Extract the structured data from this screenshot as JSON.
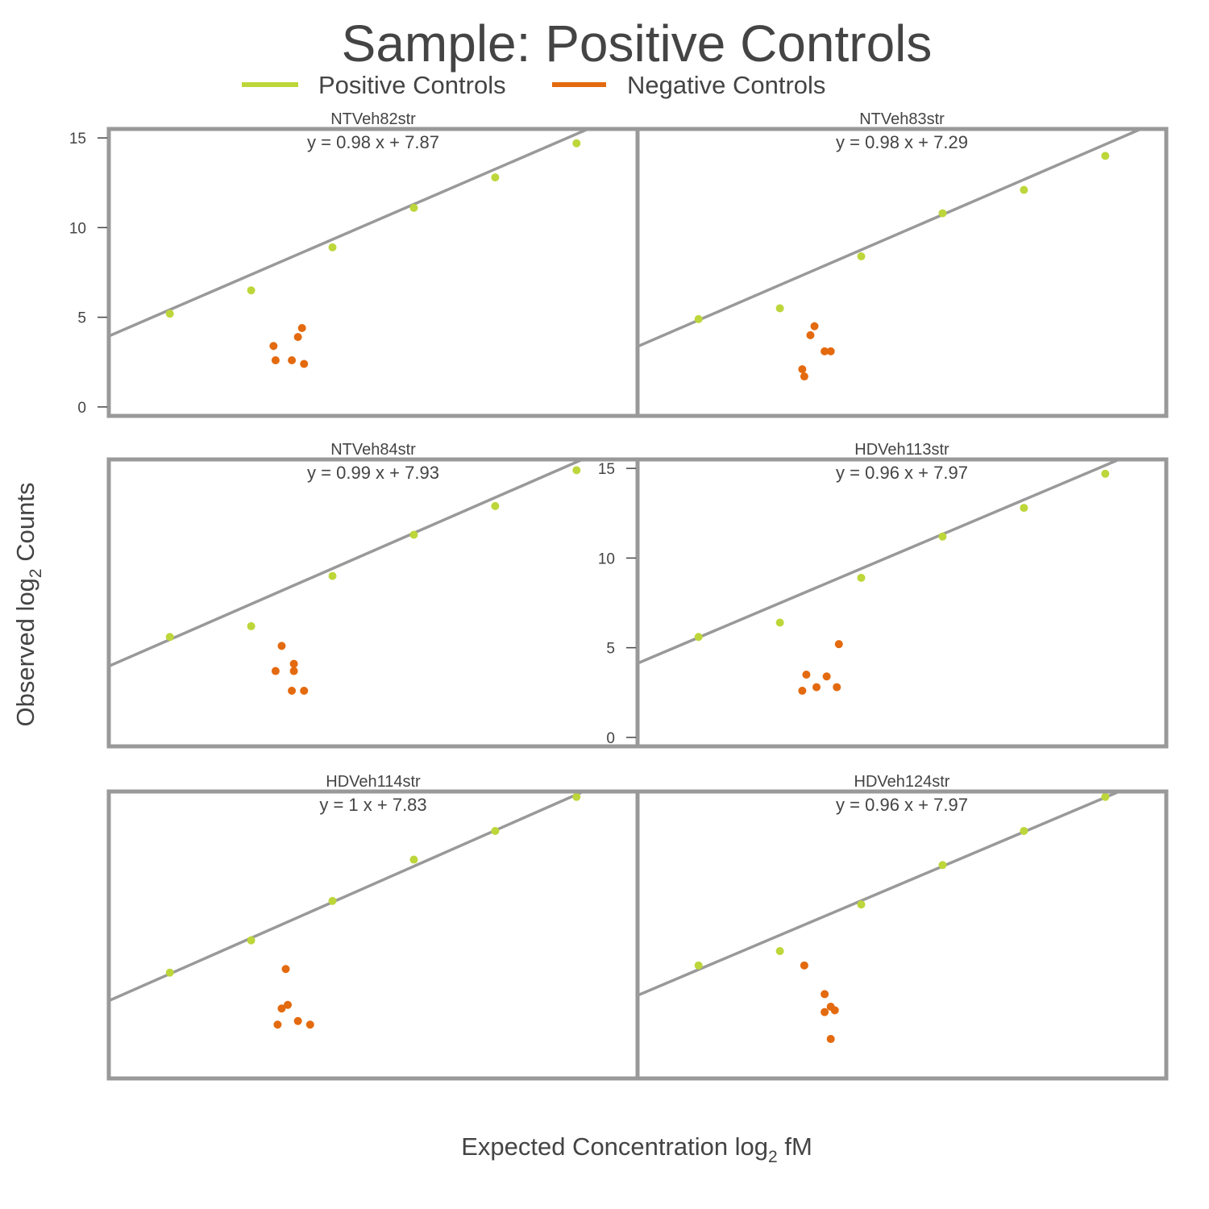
{
  "figure": {
    "title": "Sample: Positive Controls",
    "xlabel": {
      "main": "Expected Concentration log",
      "sub": "2",
      "suffix": " fM"
    },
    "ylabel": {
      "main": "Observed log",
      "sub": "2",
      "suffix": " Counts"
    }
  },
  "legend": [
    {
      "label": "Positive Controls",
      "color": "#BDD63A"
    },
    {
      "label": "Negative Controls",
      "color": "#E36A0E"
    }
  ],
  "colors": {
    "frame": "#999999",
    "fit_line": "#999999",
    "text": "#444444"
  },
  "chart_data": {
    "type": "scatter",
    "layout": "facet grid, 3 rows x 2 columns",
    "x_axis": {
      "ticks_shown": false,
      "xlim": [
        -4,
        9
      ]
    },
    "y_axis": {
      "ylim": [
        -0.5,
        15.5
      ],
      "ticks": [
        0,
        5,
        10,
        15
      ],
      "tick_labels": [
        "0",
        "5",
        "10",
        "15"
      ]
    },
    "grid": false,
    "legend_position": "top",
    "panels": [
      {
        "name": "NTVeh82str",
        "equation": "y = 0.98 x + 7.87",
        "y_ticks_shown": true,
        "fit": {
          "slope": 0.98,
          "intercept": 7.87
        },
        "positive": [
          [
            -2.5,
            5.2
          ],
          [
            -0.5,
            6.5
          ],
          [
            1.5,
            8.9
          ],
          [
            3.5,
            11.1
          ],
          [
            5.5,
            12.8
          ],
          [
            7.5,
            14.7
          ]
        ],
        "negative": [
          [
            0.05,
            3.4
          ],
          [
            0.1,
            2.6
          ],
          [
            0.5,
            2.6
          ],
          [
            0.65,
            3.9
          ],
          [
            0.75,
            4.4
          ],
          [
            0.8,
            2.4
          ]
        ]
      },
      {
        "name": "NTVeh83str",
        "equation": "y = 0.98 x + 7.29",
        "y_ticks_shown": false,
        "fit": {
          "slope": 0.98,
          "intercept": 7.29
        },
        "positive": [
          [
            -2.5,
            4.9
          ],
          [
            -0.5,
            5.5
          ],
          [
            1.5,
            8.4
          ],
          [
            3.5,
            10.8
          ],
          [
            5.5,
            12.1
          ],
          [
            7.5,
            14.0
          ]
        ],
        "negative": [
          [
            0.05,
            2.1
          ],
          [
            0.1,
            1.7
          ],
          [
            0.25,
            4.0
          ],
          [
            0.35,
            4.5
          ],
          [
            0.6,
            3.1
          ],
          [
            0.75,
            3.1
          ]
        ]
      },
      {
        "name": "NTVeh84str",
        "equation": "y = 0.99 x + 7.93",
        "y_ticks_shown": false,
        "fit": {
          "slope": 0.99,
          "intercept": 7.93
        },
        "positive": [
          [
            -2.5,
            5.6
          ],
          [
            -0.5,
            6.2
          ],
          [
            1.5,
            9.0
          ],
          [
            3.5,
            11.3
          ],
          [
            5.5,
            12.9
          ],
          [
            7.5,
            14.9
          ]
        ],
        "negative": [
          [
            0.1,
            3.7
          ],
          [
            0.25,
            5.1
          ],
          [
            0.5,
            2.6
          ],
          [
            0.55,
            3.7
          ],
          [
            0.55,
            4.1
          ],
          [
            0.8,
            2.6
          ]
        ]
      },
      {
        "name": "HDVeh113str",
        "equation": "y = 0.96 x + 7.97",
        "y_ticks_shown": true,
        "fit": {
          "slope": 0.96,
          "intercept": 7.97
        },
        "positive": [
          [
            -2.5,
            5.6
          ],
          [
            -0.5,
            6.4
          ],
          [
            1.5,
            8.9
          ],
          [
            3.5,
            11.2
          ],
          [
            5.5,
            12.8
          ],
          [
            7.5,
            14.7
          ]
        ],
        "negative": [
          [
            0.05,
            2.6
          ],
          [
            0.15,
            3.5
          ],
          [
            0.4,
            2.8
          ],
          [
            0.65,
            3.4
          ],
          [
            0.9,
            2.8
          ],
          [
            0.95,
            5.2
          ]
        ]
      },
      {
        "name": "HDVeh114str",
        "equation": "y = 1 x + 7.83",
        "y_ticks_shown": false,
        "fit": {
          "slope": 1.0,
          "intercept": 7.83
        },
        "positive": [
          [
            -2.5,
            5.4
          ],
          [
            -0.5,
            7.2
          ],
          [
            1.5,
            9.4
          ],
          [
            3.5,
            11.7
          ],
          [
            5.5,
            13.3
          ],
          [
            7.5,
            15.2
          ]
        ],
        "negative": [
          [
            0.15,
            2.5
          ],
          [
            0.25,
            3.4
          ],
          [
            0.35,
            5.6
          ],
          [
            0.4,
            3.6
          ],
          [
            0.65,
            2.7
          ],
          [
            0.95,
            2.5
          ]
        ]
      },
      {
        "name": "HDVeh124str",
        "equation": "y = 0.96 x + 7.97",
        "y_ticks_shown": false,
        "fit": {
          "slope": 0.96,
          "intercept": 7.97
        },
        "positive": [
          [
            -2.5,
            5.8
          ],
          [
            -0.5,
            6.6
          ],
          [
            1.5,
            9.2
          ],
          [
            3.5,
            11.4
          ],
          [
            5.5,
            13.3
          ],
          [
            7.5,
            15.2
          ]
        ],
        "negative": [
          [
            0.1,
            5.8
          ],
          [
            0.6,
            4.2
          ],
          [
            0.6,
            3.2
          ],
          [
            0.75,
            3.5
          ],
          [
            0.75,
            1.7
          ],
          [
            0.85,
            3.3
          ]
        ]
      }
    ]
  }
}
